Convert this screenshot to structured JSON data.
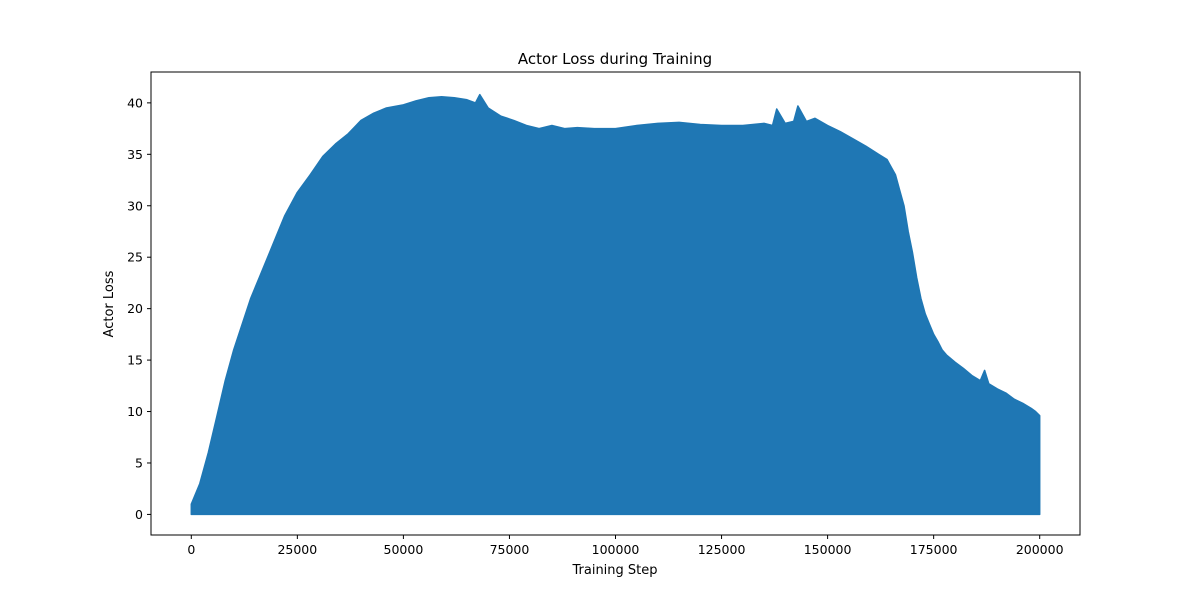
{
  "chart_data": {
    "type": "area",
    "title": "Actor Loss during Training",
    "xlabel": "Training Step",
    "ylabel": "Actor Loss",
    "xlim": [
      -9500,
      209500
    ],
    "ylim": [
      -2,
      43
    ],
    "xticks": [
      0,
      25000,
      50000,
      75000,
      100000,
      125000,
      150000,
      175000,
      200000
    ],
    "yticks": [
      0,
      5,
      10,
      15,
      20,
      25,
      30,
      35,
      40
    ],
    "grid": false,
    "legend": "none",
    "colors": {
      "series": "#1f77b4",
      "frame": "#000000"
    },
    "series": [
      {
        "x": [
          0,
          2000,
          4000,
          6000,
          8000,
          10000,
          12000,
          14000,
          16000,
          18000,
          20000,
          22000,
          25000,
          28000,
          31000,
          34000,
          37000,
          40000,
          43000,
          46000,
          50000,
          53000,
          56000,
          59000,
          62000,
          65000,
          67000,
          68000,
          70000,
          73000,
          76000,
          79000,
          82000,
          85000,
          88000,
          91000,
          95000,
          100000,
          105000,
          110000,
          115000,
          120000,
          125000,
          130000,
          135000,
          137000,
          138000,
          140000,
          142000,
          143000,
          145000,
          147000,
          150000,
          153000,
          156000,
          159000,
          162000,
          164000,
          166000,
          167000,
          168000,
          169000,
          170000,
          171000,
          172000,
          173000,
          174000,
          175000,
          176000,
          177000,
          178000,
          180000,
          182000,
          184000,
          186000,
          187000,
          188000,
          190000,
          192000,
          194000,
          196000,
          198000,
          199000,
          200000
        ],
        "values": [
          1,
          3,
          6,
          9.5,
          13,
          16,
          18.5,
          21,
          23,
          25,
          27,
          29,
          31.3,
          33,
          34.8,
          36,
          37,
          38.3,
          39,
          39.5,
          39.8,
          40.2,
          40.5,
          40.6,
          40.5,
          40.3,
          40,
          40.8,
          39.5,
          38.7,
          38.3,
          37.8,
          37.5,
          37.8,
          37.5,
          37.6,
          37.5,
          37.5,
          37.8,
          38,
          38.1,
          37.9,
          37.8,
          37.8,
          38,
          37.8,
          39.4,
          38,
          38.2,
          39.7,
          38.2,
          38.5,
          37.8,
          37.2,
          36.5,
          35.8,
          35,
          34.5,
          33,
          31.5,
          30,
          27.5,
          25.5,
          23,
          21,
          19.5,
          18.5,
          17.5,
          16.8,
          16,
          15.5,
          14.8,
          14.2,
          13.5,
          13,
          14,
          12.7,
          12.2,
          11.8,
          11.2,
          10.8,
          10.3,
          10,
          9.6
        ]
      }
    ]
  }
}
